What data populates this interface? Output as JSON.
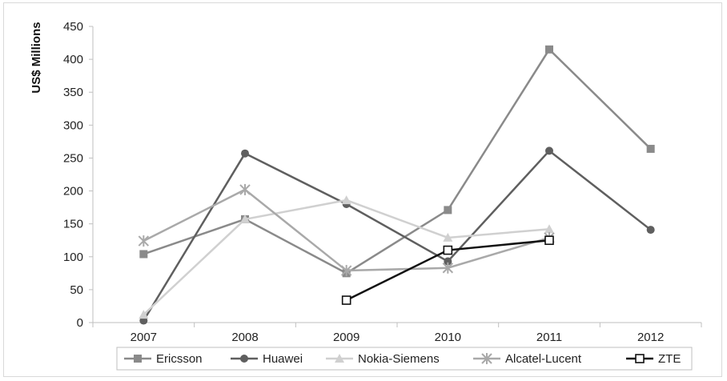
{
  "chart_data": {
    "type": "line",
    "title": "",
    "xlabel": "",
    "ylabel": "US$ Millions",
    "categories": [
      "2007",
      "2008",
      "2009",
      "2010",
      "2011",
      "2012"
    ],
    "ylim": [
      0,
      450
    ],
    "yticks": [
      0,
      50,
      100,
      150,
      200,
      250,
      300,
      350,
      400,
      450
    ],
    "grid": false,
    "legend_position": "bottom",
    "series": [
      {
        "name": "Ericsson",
        "color": "#8a8a8a",
        "marker": "square",
        "values": [
          104,
          157,
          75,
          171,
          415,
          264
        ]
      },
      {
        "name": "Huawei",
        "color": "#5f5f5f",
        "marker": "circle",
        "values": [
          3,
          257,
          180,
          93,
          261,
          141
        ]
      },
      {
        "name": "Nokia-Siemens",
        "color": "#d0d0d0",
        "marker": "triangle",
        "values": [
          12,
          157,
          186,
          129,
          142,
          null
        ]
      },
      {
        "name": "Alcatel-Lucent",
        "color": "#a9a9a9",
        "marker": "star",
        "values": [
          124,
          202,
          79,
          83,
          129,
          null
        ]
      },
      {
        "name": "ZTE",
        "color": "#111111",
        "marker": "open-square",
        "values": [
          null,
          null,
          34,
          110,
          125,
          null
        ]
      }
    ]
  }
}
